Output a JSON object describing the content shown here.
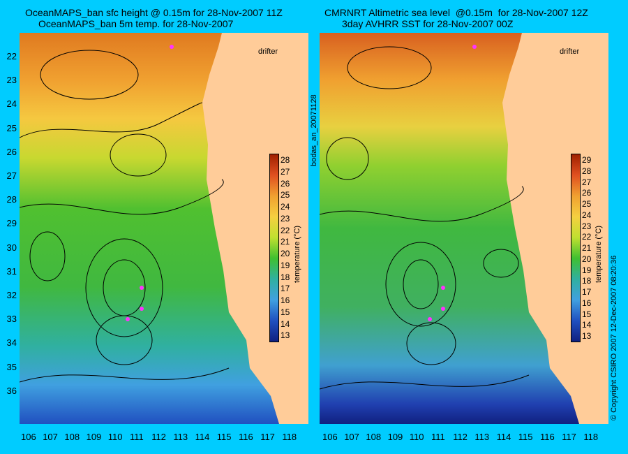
{
  "left": {
    "title_line1": "OceanMAPS_ban sfc height @ 0.15m for 28-Nov-2007 11Z",
    "title_line2": "OceanMAPS_ban 5m temp. for 28-Nov-2007",
    "drifter_label": "drifter",
    "colorbar_ticks": [
      "28",
      "27",
      "26",
      "25",
      "24",
      "23",
      "22",
      "21",
      "20",
      "19",
      "18",
      "17",
      "16",
      "15",
      "14",
      "13"
    ],
    "colorbar_label": "temperature (°C)"
  },
  "right": {
    "title_line1": "CMRNRT Altimetric sea level  @0.15m  for 28-Nov-2007 12Z",
    "title_line2": "3day AVHRR SST for 28-Nov-2007 00Z",
    "drifter_label": "drifter",
    "colorbar_ticks": [
      "29",
      "28",
      "27",
      "26",
      "25",
      "24",
      "23",
      "22",
      "21",
      "20",
      "19",
      "18",
      "17",
      "16",
      "15",
      "14",
      "13"
    ],
    "colorbar_label": "temperature (°C)"
  },
  "lat_ticks": [
    "22",
    "23",
    "24",
    "25",
    "26",
    "27",
    "28",
    "29",
    "30",
    "31",
    "32",
    "33",
    "34",
    "35",
    "36"
  ],
  "lon_ticks": [
    "106",
    "107",
    "108",
    "109",
    "110",
    "111",
    "112",
    "113",
    "114",
    "115",
    "116",
    "117",
    "118"
  ],
  "center_vertical_text": "bodas_an_20071128",
  "right_vertical_text": "© Copyright CSIRO 2007   12-Dec-2007 08:20:36",
  "colors": {
    "background": "#00ccff",
    "land": "#ffcc99",
    "drifter": "#ff33ff"
  }
}
